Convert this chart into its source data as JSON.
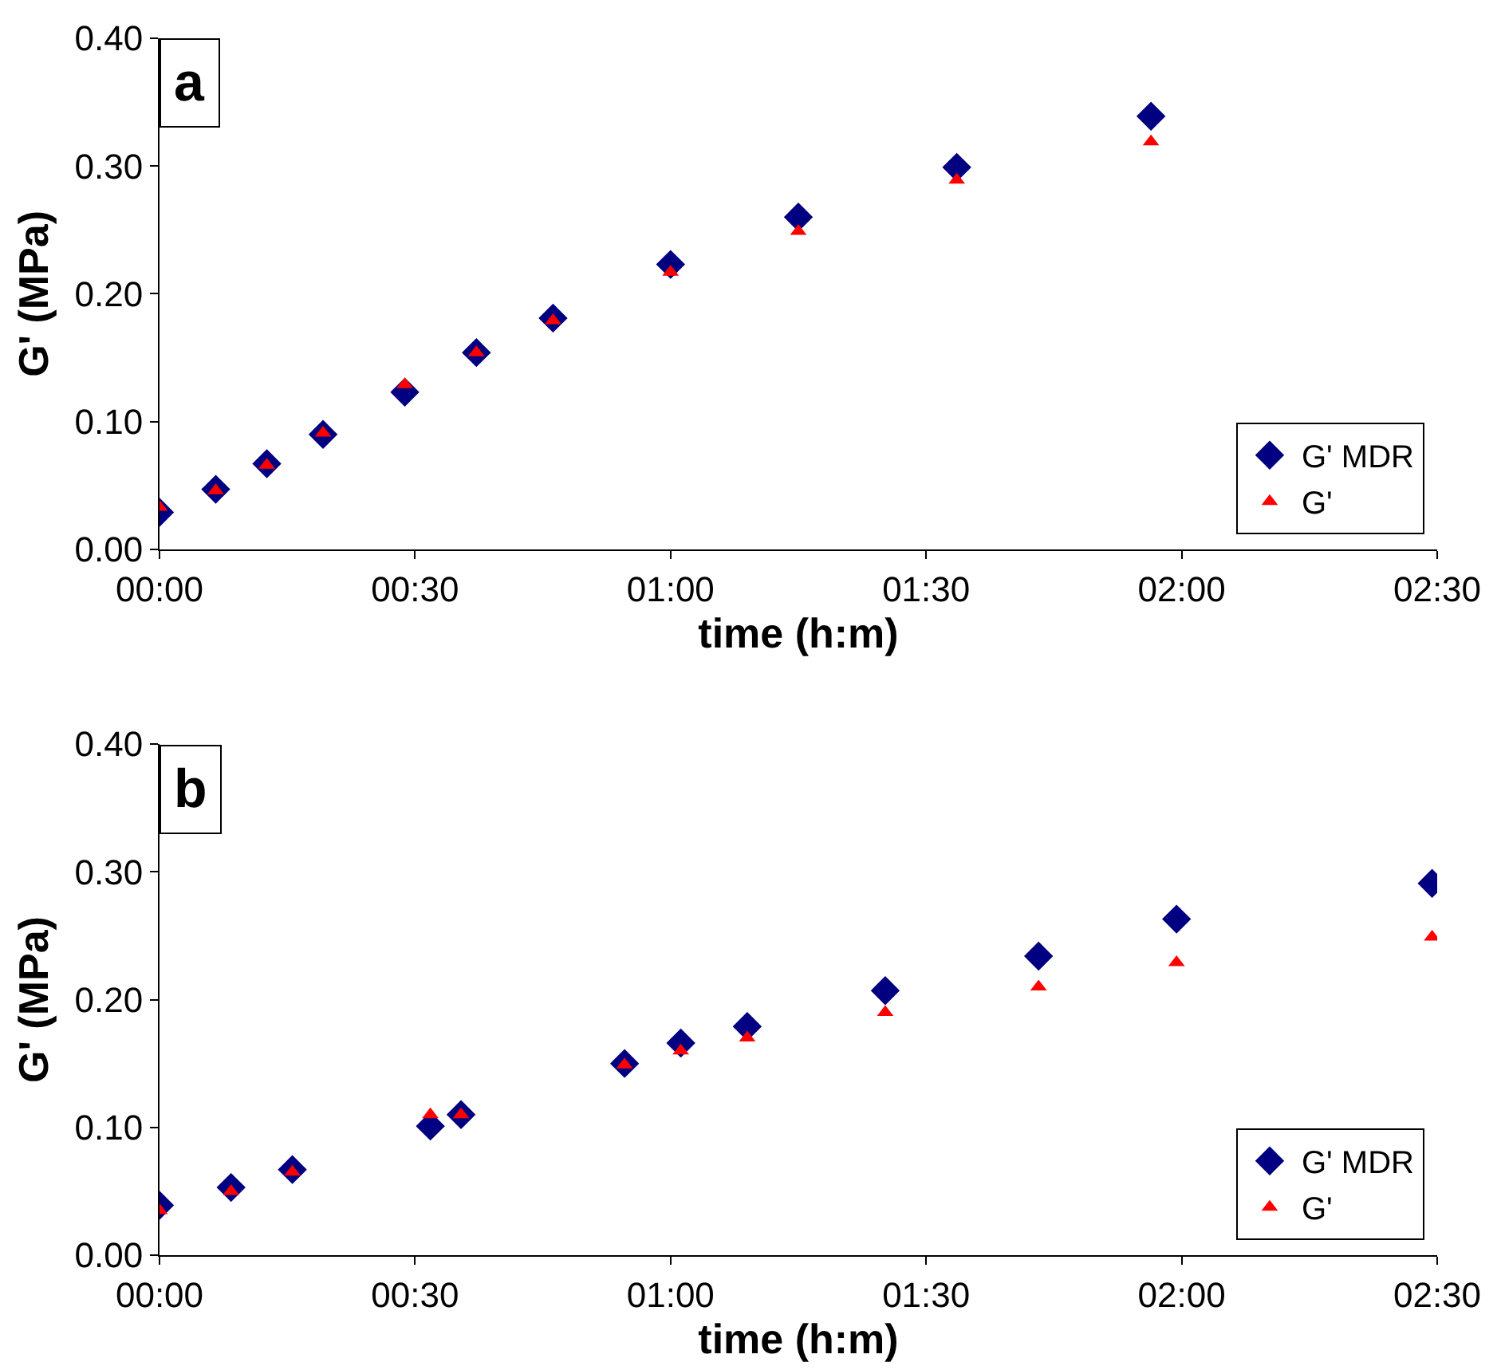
{
  "chart_data": [
    {
      "type": "scatter",
      "annotations": [
        "a"
      ],
      "xlabel": "time (h:m)",
      "ylabel": "G' (MPa)",
      "xlim": [
        0,
        2.5
      ],
      "xticks": [
        {
          "value": 0,
          "label": "00:00"
        },
        {
          "value": 0.5,
          "label": "00:30"
        },
        {
          "value": 1,
          "label": "01:00"
        },
        {
          "value": 1.5,
          "label": "01:30"
        },
        {
          "value": 2,
          "label": "02:00"
        },
        {
          "value": 2.5,
          "label": "02:30"
        }
      ],
      "ylim": [
        0,
        0.4
      ],
      "yticks": [
        {
          "value": 0,
          "label": "0.00"
        },
        {
          "value": 0.1,
          "label": "0.10"
        },
        {
          "value": 0.2,
          "label": "0.20"
        },
        {
          "value": 0.3,
          "label": "0.30"
        },
        {
          "value": 0.4,
          "label": "0.40"
        }
      ],
      "grid": false,
      "legend": "bottom right",
      "x": [
        0,
        0.11,
        0.21,
        0.32,
        0.48,
        0.62,
        0.77,
        1.0,
        1.25,
        1.56,
        1.94
      ],
      "series": [
        {
          "name": "G' MDR",
          "color": "#000080",
          "marker": "diamond",
          "values": [
            0.029,
            0.047,
            0.067,
            0.09,
            0.123,
            0.154,
            0.181,
            0.223,
            0.26,
            0.299,
            0.339
          ]
        },
        {
          "name": "G'",
          "color": "#ff0000",
          "marker": "triangle",
          "values": [
            0.033,
            0.046,
            0.066,
            0.091,
            0.129,
            0.154,
            0.179,
            0.217,
            0.249,
            0.289,
            0.319
          ]
        }
      ]
    },
    {
      "type": "scatter",
      "annotations": [
        "b"
      ],
      "xlabel": "time (h:m)",
      "ylabel": "G' (MPa)",
      "xlim": [
        0,
        2.5
      ],
      "xticks": [
        {
          "value": 0,
          "label": "00:00"
        },
        {
          "value": 0.5,
          "label": "00:30"
        },
        {
          "value": 1,
          "label": "01:00"
        },
        {
          "value": 1.5,
          "label": "01:30"
        },
        {
          "value": 2,
          "label": "02:00"
        },
        {
          "value": 2.5,
          "label": "02:30"
        }
      ],
      "ylim": [
        0,
        0.4
      ],
      "yticks": [
        {
          "value": 0,
          "label": "0.00"
        },
        {
          "value": 0.1,
          "label": "0.10"
        },
        {
          "value": 0.2,
          "label": "0.20"
        },
        {
          "value": 0.3,
          "label": "0.30"
        },
        {
          "value": 0.4,
          "label": "0.40"
        }
      ],
      "grid": false,
      "legend": "bottom right",
      "x": [
        0,
        0.14,
        0.26,
        0.53,
        0.59,
        0.91,
        1.02,
        1.15,
        1.42,
        1.72,
        1.99,
        2.49
      ],
      "series": [
        {
          "name": "G' MDR",
          "color": "#000080",
          "marker": "diamond",
          "values": [
            0.039,
            0.053,
            0.067,
            0.101,
            0.11,
            0.15,
            0.166,
            0.179,
            0.207,
            0.234,
            0.263,
            0.291
          ]
        },
        {
          "name": "G'",
          "color": "#ff0000",
          "marker": "triangle",
          "values": [
            0.035,
            0.05,
            0.065,
            0.11,
            0.11,
            0.149,
            0.16,
            0.17,
            0.19,
            0.21,
            0.229,
            0.249
          ]
        }
      ]
    }
  ]
}
